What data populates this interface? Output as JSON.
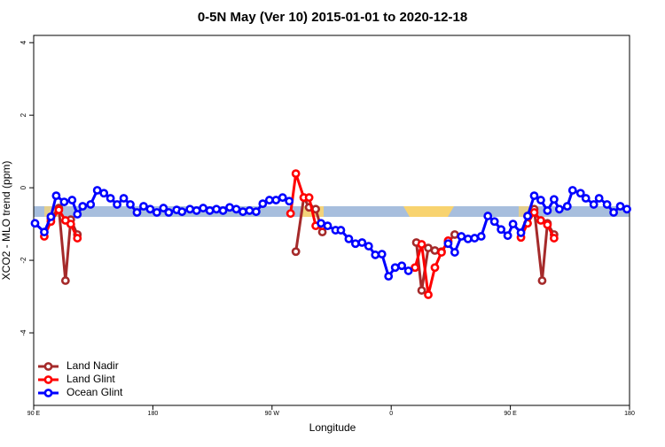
{
  "chart_data": {
    "type": "line",
    "title": "0-5N May (Ver 10)   2015-01-01 to 2020-12-18",
    "xlabel": "Longitude",
    "ylabel": "XCO2 - MLO trend (ppm)",
    "xlim": [
      90,
      540
    ],
    "ylim": [
      -6,
      4.2
    ],
    "xticks": [
      {
        "value": 90,
        "label": "90 E"
      },
      180,
      {
        "value": 270,
        "label": "90 W"
      },
      {
        "value": 360,
        "label": "0"
      },
      {
        "value": 450,
        "label": "90 E"
      },
      {
        "value": 540,
        "label": "180"
      }
    ],
    "yticks": [
      -4,
      -2,
      0,
      2,
      4
    ],
    "legend": "bottom-left",
    "series": [
      {
        "name": "Land Nadir",
        "color": "#a52a2a",
        "x": [
          103,
          109,
          114,
          118,
          123,
          null,
          288,
          294,
          298,
          303,
          308,
          null,
          379,
          383,
          388,
          393,
          398,
          403,
          408,
          null,
          463,
          468,
          474,
          478,
          483
        ],
        "values": [
          -0.85,
          -0.56,
          -2.56,
          -0.88,
          -1.29,
          null,
          -1.76,
          -0.27,
          -0.54,
          -0.59,
          -1.22,
          null,
          -1.51,
          -2.83,
          -1.66,
          -1.73,
          -1.76,
          -1.49,
          -1.29,
          null,
          -0.78,
          -0.59,
          -2.56,
          -0.98,
          -1.29
        ]
      },
      {
        "name": "Land Glint",
        "color": "#ff0000",
        "x": [
          98,
          103,
          109,
          114,
          118,
          123,
          null,
          284,
          288,
          294,
          298,
          303,
          308,
          null,
          378,
          383,
          388,
          393,
          398,
          403,
          null,
          458,
          463,
          468,
          473,
          478,
          483
        ],
        "values": [
          -1.34,
          -0.93,
          -0.61,
          -0.9,
          -1.0,
          -1.39,
          null,
          -0.71,
          0.39,
          -0.27,
          -0.27,
          -1.05,
          -1.05,
          null,
          -2.2,
          -1.56,
          -2.95,
          -2.2,
          -1.78,
          -1.46,
          null,
          -1.37,
          -0.98,
          -0.68,
          -0.9,
          -1.02,
          -1.39
        ]
      },
      {
        "name": "Ocean Glint",
        "color": "#0000ff",
        "x": [
          91,
          98,
          103,
          107,
          113,
          119,
          123,
          127,
          133,
          138,
          143,
          148,
          153,
          158,
          163,
          168,
          173,
          178,
          183,
          188,
          192,
          198,
          202,
          208,
          213,
          218,
          223,
          228,
          233,
          238,
          243,
          248,
          253,
          258,
          263,
          268,
          273,
          278,
          283,
          null,
          307,
          312,
          318,
          322,
          328,
          333,
          338,
          343,
          348,
          353,
          358,
          363,
          368,
          373,
          null,
          403,
          408,
          413,
          418,
          423,
          428,
          433,
          438,
          443,
          448,
          452,
          458,
          463,
          468,
          473,
          478,
          483,
          487,
          493,
          497,
          503,
          507,
          513,
          517,
          523,
          528,
          533,
          538
        ],
        "values": [
          -0.98,
          -1.22,
          -0.8,
          -0.22,
          -0.39,
          -0.34,
          -0.73,
          -0.51,
          -0.46,
          -0.07,
          -0.15,
          -0.29,
          -0.46,
          -0.29,
          -0.46,
          -0.68,
          -0.51,
          -0.59,
          -0.68,
          -0.56,
          -0.68,
          -0.61,
          -0.66,
          -0.59,
          -0.63,
          -0.56,
          -0.63,
          -0.59,
          -0.63,
          -0.54,
          -0.59,
          -0.66,
          -0.63,
          -0.66,
          -0.44,
          -0.34,
          -0.34,
          -0.27,
          -0.37,
          null,
          -0.98,
          -1.05,
          -1.17,
          -1.17,
          -1.41,
          -1.54,
          -1.51,
          -1.61,
          -1.85,
          -1.83,
          -2.44,
          -2.2,
          -2.15,
          -2.29,
          null,
          -1.54,
          -1.78,
          -1.34,
          -1.41,
          -1.39,
          -1.34,
          -0.78,
          -0.93,
          -1.15,
          -1.32,
          -1.0,
          -1.24,
          -0.78,
          -0.22,
          -0.34,
          -0.63,
          -0.32,
          -0.59,
          -0.51,
          -0.07,
          -0.15,
          -0.29,
          -0.46,
          -0.29,
          -0.46,
          -0.68,
          -0.51,
          -0.59
        ]
      }
    ]
  }
}
